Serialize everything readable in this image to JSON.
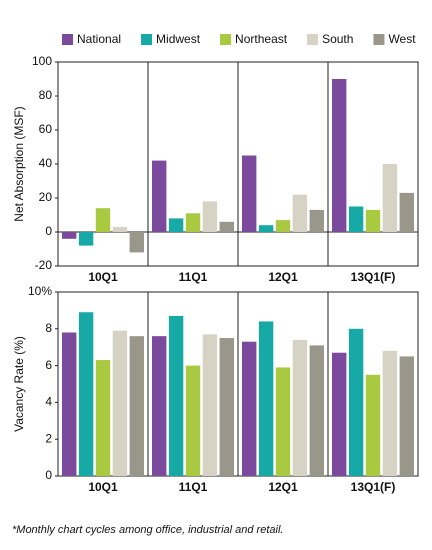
{
  "chart_data": [
    {
      "type": "bar",
      "y_label": "Net Absorption (MSF)",
      "categories": [
        "10Q1",
        "11Q1",
        "12Q1",
        "13Q1(F)"
      ],
      "series": [
        {
          "name": "National",
          "color": "#7b4a9c",
          "values": [
            -4,
            42,
            45,
            90
          ]
        },
        {
          "name": "Midwest",
          "color": "#17a9a6",
          "values": [
            -8,
            8,
            4,
            15
          ]
        },
        {
          "name": "Northeast",
          "color": "#a8c940",
          "values": [
            14,
            11,
            7,
            13
          ]
        },
        {
          "name": "South",
          "color": "#d6d3c4",
          "values": [
            3,
            18,
            22,
            40
          ]
        },
        {
          "name": "West",
          "color": "#99968a",
          "values": [
            -12,
            6,
            13,
            23
          ]
        }
      ],
      "ylim": [
        -20,
        100
      ],
      "yticks": [
        -20,
        0,
        20,
        40,
        60,
        80,
        100
      ]
    },
    {
      "type": "bar",
      "y_label": "Vacancy Rate (%)",
      "categories": [
        "10Q1",
        "11Q1",
        "12Q1",
        "13Q1(F)"
      ],
      "series": [
        {
          "color": "#7b4a9c",
          "values": [
            7.8,
            7.6,
            7.3,
            6.7
          ]
        },
        {
          "color": "#17a9a6",
          "values": [
            8.9,
            8.7,
            8.4,
            8.0
          ]
        },
        {
          "color": "#a8c940",
          "values": [
            6.3,
            6.0,
            5.9,
            5.5
          ]
        },
        {
          "color": "#d6d3c4",
          "values": [
            7.9,
            7.7,
            7.4,
            6.8
          ]
        },
        {
          "color": "#99968a",
          "values": [
            7.6,
            7.5,
            7.1,
            6.5
          ]
        }
      ],
      "ylim": [
        0,
        10
      ],
      "yticks": [
        0,
        2,
        4,
        6,
        8,
        {
          "value": 10,
          "label": "10%"
        }
      ]
    }
  ],
  "footnote": "*Monthly chart cycles among office, industrial and retail."
}
